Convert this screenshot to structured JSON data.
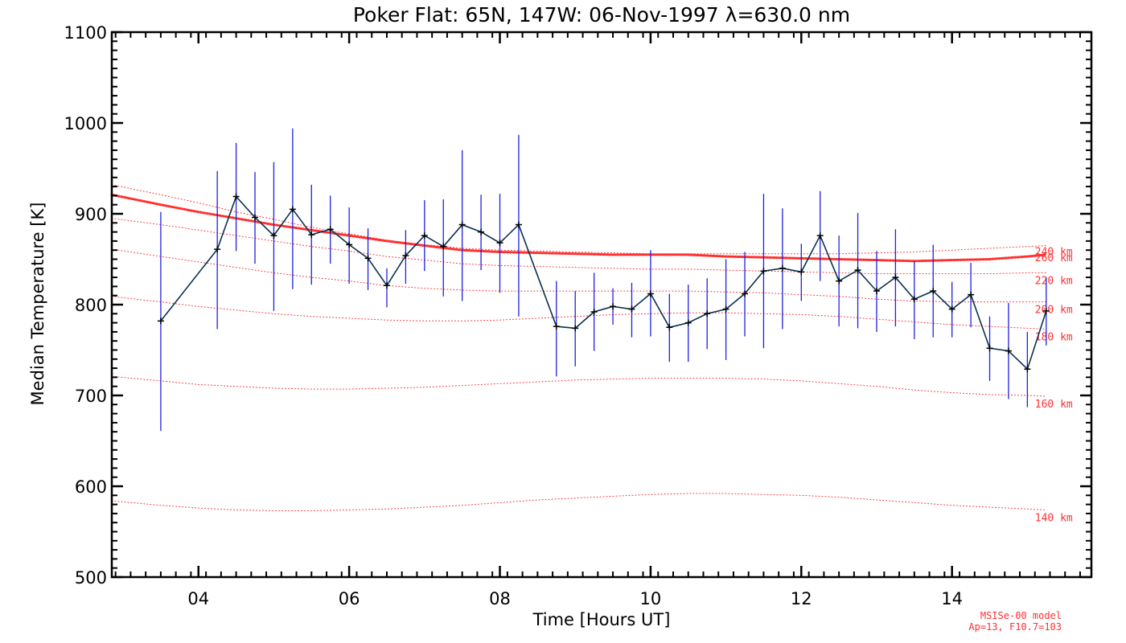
{
  "chart_data": {
    "type": "line",
    "title": "Poker Flat: 65N, 147W: 06-Nov-1997 λ=630.0 nm",
    "xlabel": "Time [Hours UT]",
    "ylabel": "Median Temperature [K]",
    "xlim": [
      2.85,
      15.85
    ],
    "ylim": [
      500,
      1100
    ],
    "x_ticks": [
      4,
      6,
      8,
      10,
      12,
      14
    ],
    "x_tick_labels": [
      "04",
      "06",
      "08",
      "10",
      "12",
      "14"
    ],
    "y_ticks": [
      500,
      600,
      700,
      800,
      900,
      1000,
      1100
    ],
    "y_tick_labels": [
      "500",
      "600",
      "700",
      "800",
      "900",
      "1000",
      "1100"
    ],
    "grid": false,
    "colors": {
      "observed": "#0a3050",
      "error_bars": "#2020e0",
      "model": "#ff3030"
    },
    "series": [
      {
        "x": [
          3.5,
          4.25,
          4.5,
          4.75,
          5.0,
          5.25,
          5.5,
          5.75,
          6.0,
          6.25,
          6.5,
          6.75,
          7.0,
          7.25,
          7.5,
          7.75,
          8.0,
          8.25,
          8.75,
          9.0,
          9.25,
          9.5,
          9.75,
          10.0,
          10.25,
          10.5,
          10.75,
          11.0,
          11.25,
          11.5,
          11.75,
          12.0,
          12.25,
          12.5,
          12.75,
          13.0,
          13.25,
          13.5,
          13.75,
          14.0,
          14.25,
          14.5,
          14.75,
          15.0,
          15.25
        ],
        "values": [
          782,
          861,
          919,
          896,
          876,
          905,
          877,
          883,
          866,
          851,
          821,
          854,
          876,
          864,
          888,
          880,
          868,
          888,
          776,
          774,
          792,
          798,
          795,
          812,
          775,
          780,
          790,
          795,
          812,
          837,
          840,
          836,
          876,
          826,
          838,
          815,
          830,
          806,
          815,
          795,
          811,
          752,
          749,
          729,
          793
        ],
        "upper": [
          902,
          947,
          978,
          946,
          957,
          994,
          932,
          920,
          907,
          884,
          840,
          882,
          915,
          916,
          970,
          921,
          922,
          987,
          826,
          815,
          835,
          818,
          824,
          860,
          812,
          822,
          829,
          850,
          858,
          922,
          906,
          867,
          925,
          876,
          901,
          859,
          883,
          848,
          866,
          825,
          846,
          787,
          802,
          770,
          830
        ],
        "lower": [
          661,
          773,
          859,
          845,
          793,
          817,
          822,
          845,
          823,
          816,
          797,
          823,
          837,
          809,
          804,
          838,
          813,
          787,
          721,
          732,
          749,
          778,
          764,
          765,
          737,
          737,
          751,
          739,
          765,
          752,
          773,
          804,
          826,
          776,
          774,
          770,
          776,
          762,
          764,
          764,
          775,
          716,
          696,
          687,
          755
        ]
      },
      {
        "name": "260 km",
        "x": [
          2.85,
          3.5,
          4.0,
          4.5,
          5.0,
          5.5,
          6.0,
          6.5,
          7.0,
          7.5,
          8.0,
          8.5,
          9.0,
          9.5,
          10.0,
          10.5,
          11.0,
          11.5,
          12.0,
          12.5,
          13.0,
          13.5,
          14.0,
          14.5,
          15.0,
          15.25
        ],
        "values": [
          921,
          910,
          902,
          895,
          888,
          882,
          876,
          870,
          865,
          860,
          858,
          857,
          856,
          855,
          855,
          855,
          853,
          852,
          851,
          850,
          849,
          848,
          849,
          850,
          853,
          855
        ]
      },
      {
        "name": "240 km",
        "x": [
          2.85,
          3.5,
          4.0,
          4.5,
          5.0,
          5.5,
          6.0,
          6.5,
          7.0,
          7.5,
          8.0,
          8.5,
          9.0,
          9.5,
          10.0,
          10.5,
          11.0,
          11.5,
          12.0,
          12.5,
          13.0,
          13.5,
          14.0,
          14.5,
          15.0,
          15.25
        ],
        "values": [
          932,
          921,
          912,
          902,
          894,
          885,
          878,
          871,
          866,
          862,
          860,
          859,
          858,
          857,
          856,
          856,
          856,
          856,
          856,
          856,
          857,
          858,
          860,
          862,
          864,
          865
        ]
      },
      {
        "name": "220 km",
        "x": [
          2.85,
          3.5,
          4.0,
          4.5,
          5.0,
          5.5,
          6.0,
          6.5,
          7.0,
          7.5,
          8.0,
          8.5,
          9.0,
          9.5,
          10.0,
          10.5,
          11.0,
          11.5,
          12.0,
          12.5,
          13.0,
          13.5,
          14.0,
          14.5,
          15.0,
          15.25
        ],
        "values": [
          895,
          888,
          882,
          876,
          870,
          864,
          859,
          853,
          849,
          845,
          843,
          842,
          841,
          840,
          839,
          839,
          838,
          837,
          836,
          835,
          834,
          834,
          834,
          834,
          835,
          835
        ]
      },
      {
        "name": "200 km",
        "x": [
          2.85,
          3.5,
          4.0,
          4.5,
          5.0,
          5.5,
          6.0,
          6.5,
          7.0,
          7.5,
          8.0,
          8.5,
          9.0,
          9.5,
          10.0,
          10.5,
          11.0,
          11.5,
          12.0,
          12.5,
          13.0,
          13.5,
          14.0,
          14.5,
          15.0,
          15.25
        ],
        "values": [
          861,
          853,
          847,
          841,
          835,
          830,
          826,
          821,
          818,
          816,
          815,
          815,
          815,
          815,
          815,
          815,
          814,
          813,
          811,
          809,
          806,
          804,
          803,
          803,
          803,
          803
        ]
      },
      {
        "name": "180 km",
        "x": [
          2.85,
          3.5,
          4.0,
          4.5,
          5.0,
          5.5,
          6.0,
          6.5,
          7.0,
          7.5,
          8.0,
          8.5,
          9.0,
          9.5,
          10.0,
          10.5,
          11.0,
          11.5,
          12.0,
          12.5,
          13.0,
          13.5,
          14.0,
          14.5,
          15.0,
          15.25
        ],
        "values": [
          809,
          803,
          798,
          794,
          790,
          787,
          785,
          783,
          782,
          782,
          783,
          785,
          787,
          789,
          790,
          791,
          791,
          790,
          789,
          787,
          784,
          781,
          778,
          776,
          774,
          773
        ]
      },
      {
        "name": "160 km",
        "x": [
          2.85,
          3.5,
          4.0,
          4.5,
          5.0,
          5.5,
          6.0,
          6.5,
          7.0,
          7.5,
          8.0,
          8.5,
          9.0,
          9.5,
          10.0,
          10.5,
          11.0,
          11.5,
          12.0,
          12.5,
          13.0,
          13.5,
          14.0,
          14.5,
          15.0,
          15.25
        ],
        "values": [
          721,
          716,
          712,
          710,
          708,
          707,
          707,
          708,
          709,
          711,
          713,
          715,
          717,
          718,
          719,
          719,
          719,
          718,
          716,
          713,
          710,
          706,
          703,
          701,
          700,
          699
        ]
      },
      {
        "name": "140 km",
        "x": [
          2.85,
          3.5,
          4.0,
          4.5,
          5.0,
          5.5,
          6.0,
          6.5,
          7.0,
          7.5,
          8.0,
          8.5,
          9.0,
          9.5,
          10.0,
          10.5,
          11.0,
          11.5,
          12.0,
          12.5,
          13.0,
          13.5,
          14.0,
          14.5,
          15.0,
          15.25
        ],
        "values": [
          584,
          579,
          576,
          574,
          573,
          573,
          574,
          575,
          577,
          579,
          582,
          585,
          587,
          589,
          591,
          592,
          592,
          591,
          590,
          588,
          585,
          582,
          579,
          577,
          575,
          574
        ]
      }
    ],
    "annotation_lines": [
      "MSISe-00 model",
      "Ap=13, F10.7=103"
    ]
  }
}
